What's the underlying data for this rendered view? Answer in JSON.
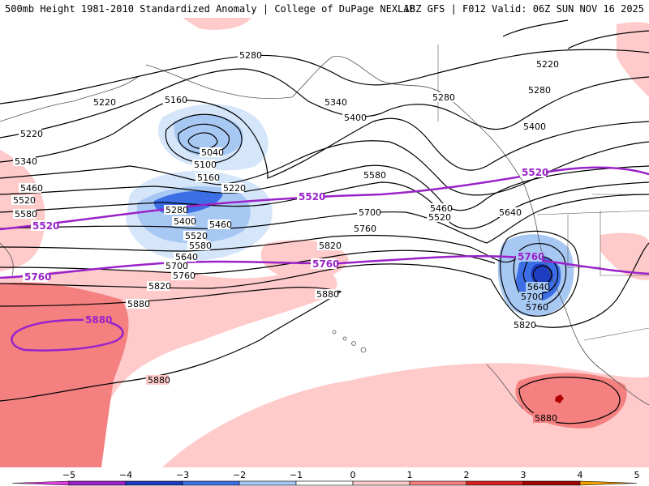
{
  "header": {
    "title_left": "500mb Height 1981-2010 Standardized Anomaly | College of DuPage NEXLAB",
    "title_right": "18Z GFS | F012 Valid: 06Z SUN NOV 16 2025"
  },
  "contour_labels": {
    "h5280a": "5280",
    "h5220a": "5220",
    "h5160": "5160",
    "h5040": "5040",
    "h5100": "5100",
    "h5340a": "5340",
    "h5400a": "5400",
    "h5280b": "5280",
    "h5220b": "5220",
    "h5280c": "5280",
    "h5400b": "5400",
    "h5220c": "5220",
    "h5340b": "5340",
    "h5460a": "5460",
    "h5520a": "5520",
    "h5580a": "5580",
    "h5160b": "5160",
    "h5220d": "5220",
    "h5280d": "5280",
    "h5400c": "5400",
    "h5460b": "5460",
    "h5520b": "5520",
    "h5580b": "5580",
    "h5640a": "5640",
    "h5700a": "5700",
    "h5760a": "5760",
    "h5820a": "5820",
    "h5880a": "5880",
    "h5580c": "5580",
    "h5700b": "5700",
    "h5760b": "5760",
    "h5820b": "5820",
    "h5880b": "5880",
    "h5460c": "5460",
    "h5520c": "5520",
    "h5640b": "5640",
    "h5640c": "5640",
    "h5700c": "5700",
    "h5760c": "5760",
    "h5820c": "5820",
    "h5880c": "5880",
    "h5880d": "5880"
  },
  "purple_labels": {
    "p5520a": "5520",
    "p5520b": "5520",
    "p5520c": "5520",
    "p5760a": "5760",
    "p5760b": "5760",
    "p5760c": "5760",
    "p5880": "5880"
  },
  "colorbar": {
    "ticks": [
      "−5",
      "−4",
      "−3",
      "−2",
      "−1",
      "0",
      "1",
      "2",
      "3",
      "4",
      "5"
    ],
    "colors": [
      "#e040e0",
      "#9a22c8",
      "#1e3cc0",
      "#3c6ee6",
      "#a8c8f4",
      "#ffffff",
      "#ffcaca",
      "#f48080",
      "#d82020",
      "#a00000",
      "#f0a000"
    ]
  }
}
